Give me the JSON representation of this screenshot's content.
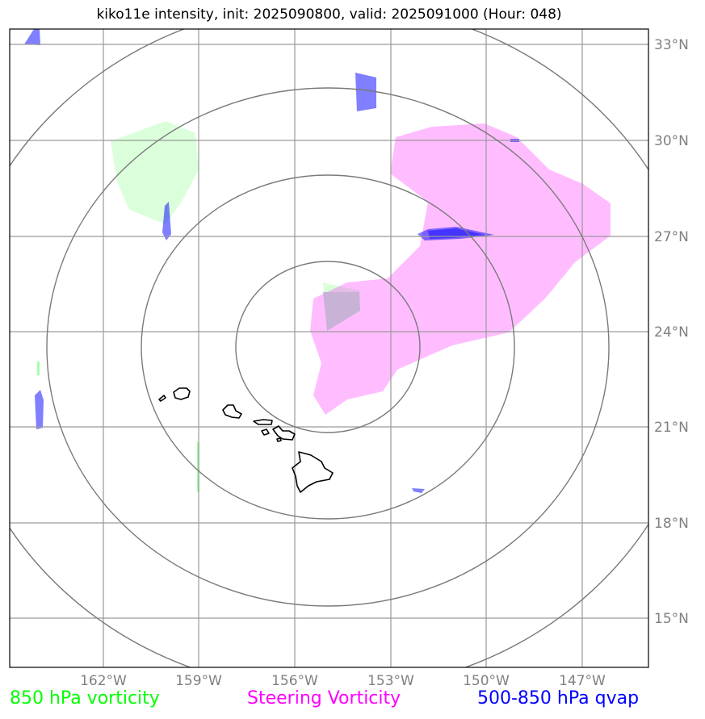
{
  "title": "kiko11e intensity, init: 2025090800, valid: 2025091000 (Hour: 048)",
  "lat_labels": [
    "33°N",
    "30°N",
    "27°N",
    "24°N",
    "21°N",
    "18°N",
    "15°N"
  ],
  "lon_labels": [
    "162°W",
    "159°W",
    "156°W",
    "153°W",
    "150°W",
    "147°W"
  ],
  "legend": {
    "item1": "850 hPa vorticity",
    "item2": "Steering Vorticity",
    "item3": "500-850 hPa qvap"
  },
  "colors": {
    "vorticity_850": "#00ff00",
    "steering_vorticity": "#ff00ff",
    "qvap": "#0000ff",
    "grid": "#9a9a9a",
    "range_rings": "#7a7a7a",
    "coastline": "#000000"
  },
  "range_ring_count": 4,
  "map_center": "Hawaiian Islands"
}
